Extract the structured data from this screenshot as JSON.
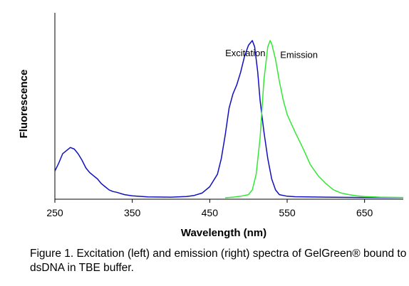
{
  "chart_data": {
    "type": "line",
    "xlabel": "Wavelength (nm)",
    "ylabel": "Fluorescence",
    "xlim": [
      250,
      700
    ],
    "ylim": [
      0,
      1
    ],
    "x_ticks": [
      250,
      350,
      450,
      550,
      650
    ],
    "y_ticks_labeled": false,
    "grid": false,
    "legend": "none",
    "series": [
      {
        "color": "#1010c0",
        "points": [
          [
            250,
            0.17
          ],
          [
            255,
            0.22
          ],
          [
            260,
            0.28
          ],
          [
            265,
            0.3
          ],
          [
            270,
            0.32
          ],
          [
            275,
            0.31
          ],
          [
            280,
            0.28
          ],
          [
            285,
            0.24
          ],
          [
            290,
            0.19
          ],
          [
            295,
            0.16
          ],
          [
            300,
            0.14
          ],
          [
            305,
            0.12
          ],
          [
            310,
            0.09
          ],
          [
            315,
            0.07
          ],
          [
            320,
            0.05
          ],
          [
            325,
            0.04
          ],
          [
            330,
            0.035
          ],
          [
            340,
            0.02
          ],
          [
            350,
            0.012
          ],
          [
            370,
            0.006
          ],
          [
            400,
            0.004
          ],
          [
            420,
            0.008
          ],
          [
            430,
            0.015
          ],
          [
            440,
            0.03
          ],
          [
            450,
            0.07
          ],
          [
            460,
            0.15
          ],
          [
            465,
            0.25
          ],
          [
            470,
            0.4
          ],
          [
            475,
            0.57
          ],
          [
            480,
            0.66
          ],
          [
            485,
            0.72
          ],
          [
            490,
            0.8
          ],
          [
            495,
            0.9
          ],
          [
            500,
            0.97
          ],
          [
            505,
            1.0
          ],
          [
            508,
            0.96
          ],
          [
            512,
            0.8
          ],
          [
            515,
            0.62
          ],
          [
            520,
            0.42
          ],
          [
            525,
            0.25
          ],
          [
            530,
            0.12
          ],
          [
            535,
            0.05
          ],
          [
            540,
            0.02
          ],
          [
            550,
            0.01
          ],
          [
            560,
            0.007
          ],
          [
            600,
            0.004
          ],
          [
            650,
            0.002
          ],
          [
            700,
            0.001
          ]
        ]
      },
      {
        "color": "#33e833",
        "points": [
          [
            470,
            0.0
          ],
          [
            480,
            0.004
          ],
          [
            490,
            0.01
          ],
          [
            500,
            0.02
          ],
          [
            505,
            0.05
          ],
          [
            510,
            0.15
          ],
          [
            515,
            0.38
          ],
          [
            520,
            0.75
          ],
          [
            525,
            0.96
          ],
          [
            528,
            1.0
          ],
          [
            530,
            0.98
          ],
          [
            535,
            0.88
          ],
          [
            540,
            0.74
          ],
          [
            545,
            0.62
          ],
          [
            550,
            0.53
          ],
          [
            560,
            0.42
          ],
          [
            570,
            0.32
          ],
          [
            580,
            0.21
          ],
          [
            590,
            0.14
          ],
          [
            600,
            0.09
          ],
          [
            610,
            0.05
          ],
          [
            620,
            0.03
          ],
          [
            630,
            0.02
          ],
          [
            640,
            0.012
          ],
          [
            650,
            0.008
          ],
          [
            670,
            0.004
          ],
          [
            700,
            0.002
          ]
        ]
      }
    ],
    "annotations": [
      {
        "text": "Excitation",
        "x": 470,
        "y": 0.9
      },
      {
        "text": "Emission",
        "x": 541,
        "y": 0.89
      }
    ]
  },
  "caption": "Figure 1. Excitation (left) and emission (right) spectra of GelGreen® bound to dsDNA in TBE buffer.",
  "colors": {
    "excitation": "#1010c0",
    "emission": "#33e833",
    "axis": "#000000"
  }
}
